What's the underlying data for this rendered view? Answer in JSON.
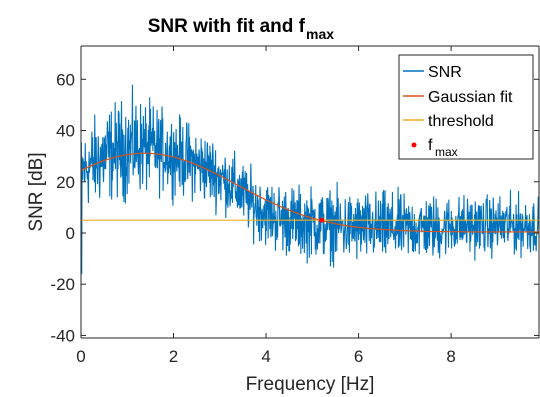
{
  "chart_data": {
    "type": "line",
    "title": "SNR with fit and f",
    "title_subscript": "max",
    "xlabel": "Frequency [Hz]",
    "ylabel": "SNR [dB]",
    "xlim": [
      0,
      9.9
    ],
    "ylim": [
      -41,
      73
    ],
    "x_ticks": [
      0,
      2,
      4,
      6,
      8
    ],
    "x_tick_labels": [
      "0",
      "2",
      "4",
      "6",
      "8"
    ],
    "y_ticks": [
      -40,
      -20,
      0,
      20,
      40,
      60
    ],
    "y_tick_labels": [
      "-40",
      "-20",
      "0",
      "20",
      "40",
      "60"
    ],
    "grid": false,
    "legend_position": "top-right",
    "series": [
      {
        "name": "SNR",
        "color": "#0072BD",
        "kind": "noisy-line",
        "x": [
          0.0,
          0.25,
          0.5,
          0.75,
          1.0,
          1.25,
          1.5,
          1.75,
          2.0,
          2.25,
          2.5,
          2.75,
          3.0,
          3.25,
          3.5,
          3.75,
          4.0,
          4.25,
          4.5,
          4.75,
          5.0,
          5.25,
          5.5,
          5.75,
          6.0,
          6.25,
          6.5,
          6.75,
          7.0,
          7.25,
          7.5,
          7.75,
          8.0,
          8.25,
          8.5,
          8.75,
          9.0,
          9.25,
          9.5,
          9.75,
          9.9
        ],
        "y": [
          24,
          27,
          30,
          32,
          33,
          34,
          33,
          32,
          31,
          29,
          27,
          25,
          22,
          19,
          15,
          11,
          8,
          6,
          5,
          4,
          4,
          3,
          3,
          2,
          2,
          2,
          2,
          2,
          2,
          2,
          2,
          2,
          3,
          3,
          3,
          3,
          3,
          3,
          3,
          3,
          3
        ],
        "noise_amplitude": [
          12,
          15,
          16,
          16,
          17,
          16,
          15,
          14,
          13,
          13,
          12,
          12,
          11,
          11,
          11,
          11,
          11,
          12,
          12,
          12,
          12,
          12,
          12,
          12,
          12,
          12,
          12,
          12,
          11,
          11,
          11,
          11,
          10,
          10,
          10,
          10,
          10,
          10,
          10,
          10,
          10
        ]
      },
      {
        "name": "Gaussian fit",
        "color": "#D95319",
        "kind": "line",
        "x": [
          0.0,
          0.25,
          0.5,
          0.75,
          1.0,
          1.25,
          1.5,
          1.75,
          2.0,
          2.25,
          2.5,
          2.75,
          3.0,
          3.25,
          3.5,
          3.75,
          4.0,
          4.25,
          4.5,
          4.75,
          5.0,
          5.25,
          5.5,
          5.75,
          6.0,
          6.25,
          6.5,
          6.75,
          7.0,
          7.5,
          8.0,
          8.5,
          9.0,
          9.5,
          9.9
        ],
        "y": [
          24.4,
          26.5,
          28.3,
          29.7,
          30.6,
          31.1,
          31.1,
          30.6,
          29.7,
          28.3,
          26.6,
          24.6,
          22.4,
          20.0,
          17.6,
          15.2,
          12.9,
          10.8,
          8.9,
          7.2,
          5.8,
          4.6,
          3.6,
          2.8,
          2.2,
          1.7,
          1.4,
          1.1,
          0.9,
          0.6,
          0.5,
          0.4,
          0.4,
          0.4,
          0.4
        ]
      },
      {
        "name": "threshold",
        "color": "#EDB120",
        "kind": "line",
        "x": [
          0,
          9.9
        ],
        "y": [
          5,
          5
        ]
      },
      {
        "name": "f",
        "name_subscript": "max",
        "color": "#FF0000",
        "kind": "point",
        "x": [
          5.2
        ],
        "y": [
          5
        ]
      }
    ]
  }
}
